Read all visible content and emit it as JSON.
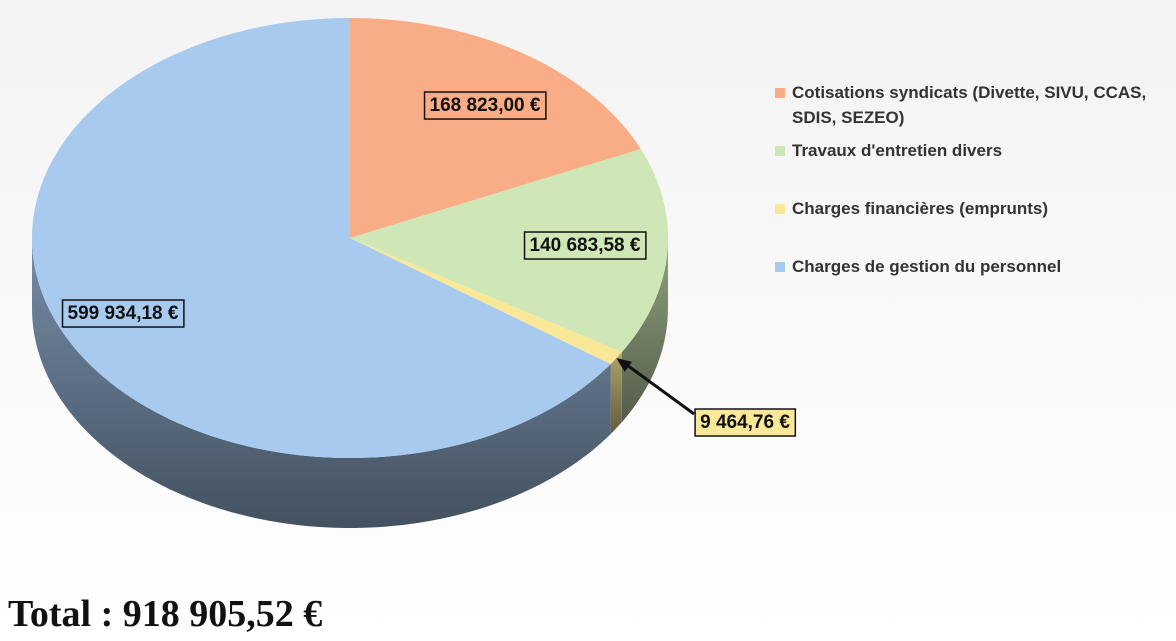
{
  "chart_data": {
    "type": "pie",
    "annotation": "Total : 918 905,52 €",
    "categories": [
      "Cotisations syndicats (Divette, SIVU, CCAS, SDIS, SEZEO)",
      "Travaux d'entretien divers",
      "Charges financières (emprunts)",
      "Charges de gestion du personnel"
    ],
    "values": [
      168823.0,
      140683.58,
      9464.76,
      599934.18
    ],
    "value_labels": [
      "168 823,00 €",
      "140 683,58 €",
      "9 464,76 €",
      "599 934,18 €"
    ],
    "colors": [
      "#f8ad86",
      "#cfe7b6",
      "#fae899",
      "#a8caef"
    ],
    "legend": "right"
  }
}
